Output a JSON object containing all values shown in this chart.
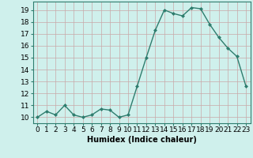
{
  "title": "",
  "xlabel": "Humidex (Indice chaleur)",
  "ylabel": "",
  "x_values": [
    0,
    1,
    2,
    3,
    4,
    5,
    6,
    7,
    8,
    9,
    10,
    11,
    12,
    13,
    14,
    15,
    16,
    17,
    18,
    19,
    20,
    21,
    22,
    23
  ],
  "y_values": [
    10,
    10.5,
    10.2,
    11,
    10.2,
    10,
    10.2,
    10.7,
    10.6,
    10,
    10.2,
    12.6,
    15,
    17.3,
    19,
    18.7,
    18.5,
    19.2,
    19.1,
    17.8,
    16.7,
    15.8,
    15.1,
    12.6
  ],
  "line_color": "#2e7d6e",
  "marker": "D",
  "marker_size": 2.0,
  "line_width": 1.0,
  "bg_color": "#cff0ec",
  "grid_color": "#c9a8a8",
  "ylim": [
    9.5,
    19.7
  ],
  "yticks": [
    10,
    11,
    12,
    13,
    14,
    15,
    16,
    17,
    18,
    19
  ],
  "xticks": [
    0,
    1,
    2,
    3,
    4,
    5,
    6,
    7,
    8,
    9,
    10,
    11,
    12,
    13,
    14,
    15,
    16,
    17,
    18,
    19,
    20,
    21,
    22,
    23
  ],
  "xlabel_fontsize": 7,
  "tick_fontsize": 6.5
}
